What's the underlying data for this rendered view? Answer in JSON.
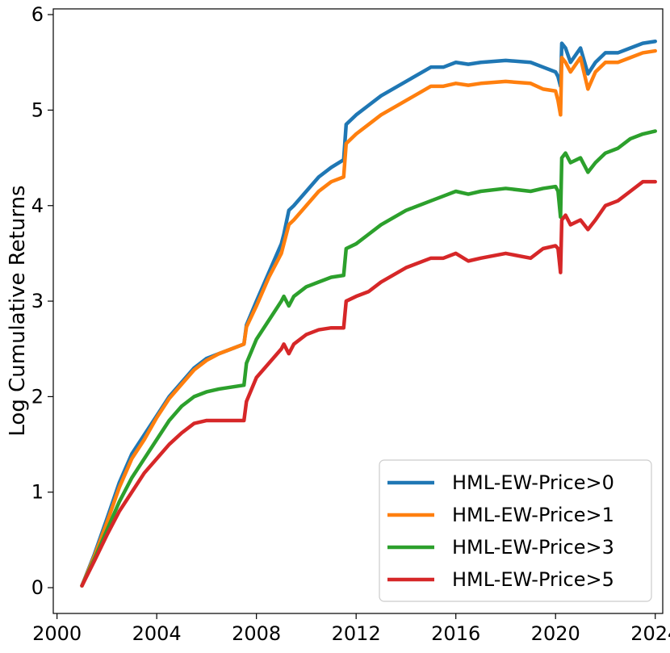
{
  "chart_data": {
    "type": "line",
    "title": "",
    "xlabel": "",
    "ylabel": "Log Cumulative Returns",
    "xlim": [
      1999.85,
      2024.3
    ],
    "ylim": [
      -0.27,
      6.06
    ],
    "xticks": [
      2000,
      2004,
      2008,
      2012,
      2016,
      2020,
      2024
    ],
    "yticks": [
      0,
      1,
      2,
      3,
      4,
      5,
      6
    ],
    "xtick_labels": [
      "2000",
      "2004",
      "2008",
      "2012",
      "2016",
      "2020",
      "2024"
    ],
    "ytick_labels": [
      "0",
      "1",
      "2",
      "3",
      "4",
      "5",
      "6"
    ],
    "grid": false,
    "legend_position": "lower right",
    "series": [
      {
        "name": "HML-EW-Price>0",
        "color": "#1f77b4",
        "x": [
          2001.0,
          2001.5,
          2002.0,
          2002.5,
          2003.0,
          2003.5,
          2004.0,
          2004.5,
          2005.0,
          2005.5,
          2006.0,
          2006.5,
          2007.0,
          2007.5,
          2007.6,
          2008.0,
          2008.5,
          2009.0,
          2009.1,
          2009.3,
          2009.5,
          2010.0,
          2010.5,
          2011.0,
          2011.5,
          2011.6,
          2012.0,
          2012.5,
          2013.0,
          2014.0,
          2015.0,
          2015.5,
          2016.0,
          2016.5,
          2017.0,
          2018.0,
          2019.0,
          2019.5,
          2020.0,
          2020.1,
          2020.2,
          2020.25,
          2020.4,
          2020.6,
          2021.0,
          2021.3,
          2021.6,
          2022.0,
          2022.5,
          2023.0,
          2023.5,
          2024.0
        ],
        "y": [
          0.02,
          0.35,
          0.72,
          1.1,
          1.4,
          1.6,
          1.8,
          2.0,
          2.15,
          2.3,
          2.4,
          2.45,
          2.5,
          2.55,
          2.75,
          3.0,
          3.3,
          3.6,
          3.7,
          3.95,
          4.0,
          4.15,
          4.3,
          4.4,
          4.48,
          4.85,
          4.95,
          5.05,
          5.15,
          5.3,
          5.45,
          5.45,
          5.5,
          5.48,
          5.5,
          5.52,
          5.5,
          5.45,
          5.4,
          5.35,
          5.25,
          5.7,
          5.65,
          5.5,
          5.65,
          5.38,
          5.5,
          5.6,
          5.6,
          5.65,
          5.7,
          5.72
        ]
      },
      {
        "name": "HML-EW-Price>1",
        "color": "#ff7f0e",
        "x": [
          2001.0,
          2001.5,
          2002.0,
          2002.5,
          2003.0,
          2003.5,
          2004.0,
          2004.5,
          2005.0,
          2005.5,
          2006.0,
          2006.5,
          2007.0,
          2007.5,
          2007.6,
          2008.0,
          2008.5,
          2009.0,
          2009.1,
          2009.3,
          2009.5,
          2010.0,
          2010.5,
          2011.0,
          2011.5,
          2011.6,
          2012.0,
          2012.5,
          2013.0,
          2014.0,
          2015.0,
          2015.5,
          2016.0,
          2016.5,
          2017.0,
          2018.0,
          2019.0,
          2019.5,
          2020.0,
          2020.1,
          2020.2,
          2020.25,
          2020.4,
          2020.6,
          2021.0,
          2021.3,
          2021.6,
          2022.0,
          2022.5,
          2023.0,
          2023.5,
          2024.0
        ],
        "y": [
          0.02,
          0.33,
          0.68,
          1.05,
          1.35,
          1.55,
          1.78,
          1.98,
          2.13,
          2.28,
          2.38,
          2.45,
          2.5,
          2.55,
          2.73,
          2.95,
          3.25,
          3.5,
          3.6,
          3.8,
          3.85,
          4.0,
          4.15,
          4.25,
          4.3,
          4.65,
          4.75,
          4.85,
          4.95,
          5.1,
          5.25,
          5.25,
          5.28,
          5.26,
          5.28,
          5.3,
          5.28,
          5.22,
          5.2,
          5.1,
          4.95,
          5.55,
          5.5,
          5.4,
          5.55,
          5.22,
          5.4,
          5.5,
          5.5,
          5.55,
          5.6,
          5.62
        ]
      },
      {
        "name": "HML-EW-Price>3",
        "color": "#2ca02c",
        "x": [
          2001.0,
          2001.5,
          2002.0,
          2002.5,
          2003.0,
          2003.5,
          2004.0,
          2004.5,
          2005.0,
          2005.5,
          2006.0,
          2006.5,
          2007.0,
          2007.5,
          2007.6,
          2008.0,
          2008.5,
          2009.0,
          2009.1,
          2009.3,
          2009.5,
          2010.0,
          2010.5,
          2011.0,
          2011.5,
          2011.6,
          2012.0,
          2012.5,
          2013.0,
          2014.0,
          2015.0,
          2015.5,
          2016.0,
          2016.5,
          2017.0,
          2018.0,
          2019.0,
          2019.5,
          2020.0,
          2020.1,
          2020.2,
          2020.25,
          2020.4,
          2020.6,
          2021.0,
          2021.3,
          2021.6,
          2022.0,
          2022.5,
          2023.0,
          2023.5,
          2024.0
        ],
        "y": [
          0.02,
          0.3,
          0.6,
          0.9,
          1.15,
          1.35,
          1.55,
          1.75,
          1.9,
          2.0,
          2.05,
          2.08,
          2.1,
          2.12,
          2.35,
          2.6,
          2.8,
          3.0,
          3.05,
          2.95,
          3.05,
          3.15,
          3.2,
          3.25,
          3.27,
          3.55,
          3.6,
          3.7,
          3.8,
          3.95,
          4.05,
          4.1,
          4.15,
          4.12,
          4.15,
          4.18,
          4.15,
          4.18,
          4.2,
          4.15,
          3.88,
          4.5,
          4.55,
          4.45,
          4.5,
          4.35,
          4.45,
          4.55,
          4.6,
          4.7,
          4.75,
          4.78
        ]
      },
      {
        "name": "HML-EW-Price>5",
        "color": "#d62728",
        "x": [
          2001.0,
          2001.5,
          2002.0,
          2002.5,
          2003.0,
          2003.5,
          2004.0,
          2004.5,
          2005.0,
          2005.5,
          2006.0,
          2006.5,
          2007.0,
          2007.5,
          2007.6,
          2008.0,
          2008.5,
          2009.0,
          2009.1,
          2009.3,
          2009.5,
          2010.0,
          2010.5,
          2011.0,
          2011.5,
          2011.6,
          2012.0,
          2012.5,
          2013.0,
          2014.0,
          2015.0,
          2015.5,
          2016.0,
          2016.5,
          2017.0,
          2018.0,
          2019.0,
          2019.5,
          2020.0,
          2020.1,
          2020.2,
          2020.25,
          2020.4,
          2020.6,
          2021.0,
          2021.3,
          2021.6,
          2022.0,
          2022.5,
          2023.0,
          2023.5,
          2024.0
        ],
        "y": [
          0.02,
          0.28,
          0.55,
          0.8,
          1.0,
          1.2,
          1.35,
          1.5,
          1.62,
          1.72,
          1.75,
          1.75,
          1.75,
          1.75,
          1.95,
          2.2,
          2.35,
          2.5,
          2.55,
          2.45,
          2.55,
          2.65,
          2.7,
          2.72,
          2.72,
          3.0,
          3.05,
          3.1,
          3.2,
          3.35,
          3.45,
          3.45,
          3.5,
          3.42,
          3.45,
          3.5,
          3.45,
          3.55,
          3.58,
          3.55,
          3.3,
          3.85,
          3.9,
          3.8,
          3.85,
          3.75,
          3.85,
          4.0,
          4.05,
          4.15,
          4.25,
          4.25
        ]
      }
    ]
  }
}
